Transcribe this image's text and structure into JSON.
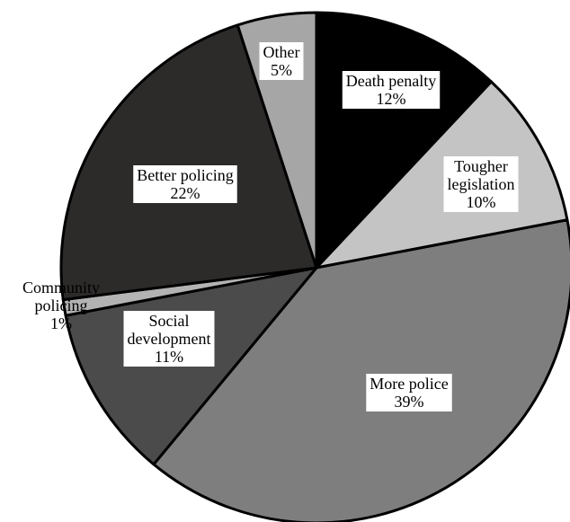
{
  "chart_data": {
    "type": "pie",
    "start_angle_deg": 0,
    "direction": "clockwise",
    "slices": [
      {
        "label_lines": [
          "Death penalty"
        ],
        "value_label": "12%",
        "value": 12,
        "color": "#000000"
      },
      {
        "label_lines": [
          "Tougher",
          "legislation"
        ],
        "value_label": "10%",
        "value": 10,
        "color": "#c4c4c4"
      },
      {
        "label_lines": [
          "More police"
        ],
        "value_label": "39%",
        "value": 39,
        "color": "#7e7e7e"
      },
      {
        "label_lines": [
          "Social",
          "development"
        ],
        "value_label": "11%",
        "value": 11,
        "color": "#4b4b4b"
      },
      {
        "label_lines": [
          "Community",
          "policing"
        ],
        "value_label": "1%",
        "value": 1,
        "color": "#b3b3b3"
      },
      {
        "label_lines": [
          "Better policing"
        ],
        "value_label": "22%",
        "value": 22,
        "color": "#2d2a2a"
      },
      {
        "label_lines": [
          "Other"
        ],
        "value_label": "5%",
        "value": 5,
        "color": "#a6a6a6"
      }
    ]
  }
}
